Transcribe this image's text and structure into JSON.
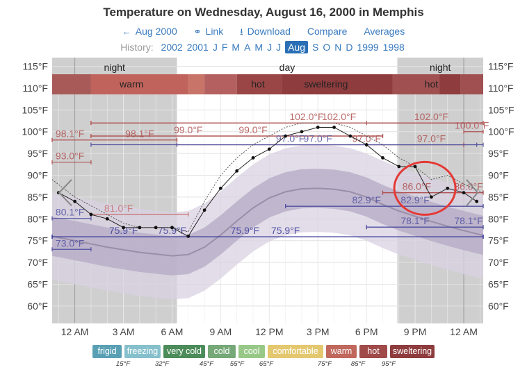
{
  "header": {
    "title": "Temperature on Wednesday, August 16, 2000 in Memphis",
    "nav": [
      {
        "icon": "arrow-left-icon",
        "glyph": "←",
        "label": "Aug 2000"
      },
      {
        "icon": "link-icon",
        "glyph": "⚭",
        "label": "Link"
      },
      {
        "icon": "download-icon",
        "glyph": "⭳",
        "label": "Download"
      },
      {
        "icon": "",
        "glyph": "",
        "label": "Compare"
      },
      {
        "icon": "",
        "glyph": "",
        "label": "Averages"
      }
    ],
    "history_label": "History:",
    "history": [
      "2002",
      "2001",
      "J",
      "F",
      "M",
      "A",
      "M",
      "J",
      "J",
      "Aug",
      "S",
      "O",
      "N",
      "D",
      "1999",
      "1998"
    ],
    "history_selected": "Aug"
  },
  "chart_data": {
    "type": "line",
    "y_unit": "°F",
    "ylim": [
      56,
      117
    ],
    "y_ticks": [
      60,
      65,
      70,
      75,
      80,
      85,
      90,
      95,
      100,
      105,
      110,
      115
    ],
    "y_tick_labels": [
      "60°F",
      "65°F",
      "70°F",
      "75°F",
      "80°F",
      "85°F",
      "90°F",
      "95°F",
      "100°F",
      "105°F",
      "110°F",
      "115°F"
    ],
    "xlim": [
      -1.4,
      25.2
    ],
    "x_ticks": [
      0,
      3,
      6,
      9,
      12,
      15,
      18,
      21,
      24
    ],
    "x_tick_labels": [
      "12 AM",
      "3 AM",
      "6 AM",
      "9 AM",
      "12 PM",
      "3 PM",
      "6 PM",
      "9 PM",
      "12 AM"
    ],
    "periods": [
      {
        "label": "night",
        "start": -1.4,
        "end": 6.3
      },
      {
        "label": "day",
        "start": 6.3,
        "end": 19.9
      },
      {
        "label": "night",
        "start": 19.9,
        "end": 25.2
      }
    ],
    "band_labels": [
      {
        "label": "warm",
        "x": 3.5
      },
      {
        "label": "hot",
        "x": 11.3
      },
      {
        "label": "sweltering",
        "x": 15.5
      },
      {
        "label": "hot",
        "x": 22.0
      }
    ],
    "band_segments": [
      {
        "start": -1.4,
        "end": 1.0,
        "color": "#a85a58"
      },
      {
        "start": 1.0,
        "end": 7.0,
        "color": "#c0635c"
      },
      {
        "start": 7.0,
        "end": 8.0,
        "color": "#c87468"
      },
      {
        "start": 8.0,
        "end": 10.0,
        "color": "#b46060"
      },
      {
        "start": 10.0,
        "end": 12.8,
        "color": "#9a4646"
      },
      {
        "start": 12.8,
        "end": 19.6,
        "color": "#8e3c3e"
      },
      {
        "start": 19.6,
        "end": 22.5,
        "color": "#a05050"
      },
      {
        "start": 22.5,
        "end": 23.8,
        "color": "#8e3c3e"
      },
      {
        "start": 23.8,
        "end": 25.2,
        "color": "#a05050"
      }
    ],
    "observed": {
      "x": [
        -1.0,
        0.0,
        1.0,
        2.0,
        3.0,
        4.0,
        5.0,
        6.0,
        7.0,
        8.0,
        9.0,
        10.0,
        11.0,
        12.0,
        13.0,
        14.0,
        15.0,
        16.0,
        17.0,
        18.0,
        19.0,
        20.0,
        21.0,
        22.0,
        23.0,
        24.0,
        24.8
      ],
      "y": [
        86,
        84,
        81,
        80,
        78,
        78,
        78,
        78,
        76,
        82,
        87,
        91,
        94,
        96,
        99,
        100,
        101,
        101,
        99,
        97,
        94,
        92,
        92,
        85,
        87,
        86,
        84
      ]
    },
    "dotted_line": {
      "x": [
        -1.4,
        0.0,
        1.0,
        2.0,
        3.0,
        4.0,
        5.0,
        6.0,
        7.0,
        8.0,
        9.0,
        10.0,
        11.0,
        12.0,
        13.0,
        14.0,
        15.0,
        16.0,
        17.0,
        18.0,
        19.0,
        20.0,
        21.0,
        22.0,
        23.0,
        24.0,
        25.2
      ],
      "y": [
        89,
        85,
        83,
        81,
        79,
        78,
        78,
        78,
        77,
        84,
        90,
        94,
        97,
        99,
        101,
        102,
        102,
        102,
        101,
        99,
        97,
        94,
        92,
        89,
        90,
        88,
        86
      ]
    },
    "normal_mean": {
      "x": [
        -1.4,
        0,
        2,
        4,
        6,
        7,
        8,
        9,
        10,
        11,
        12,
        13,
        14,
        15,
        16,
        17,
        18,
        19,
        20,
        21,
        22,
        23,
        24,
        25.2
      ],
      "y": [
        76.0,
        75.0,
        73.5,
        72.3,
        71.5,
        71.8,
        73.5,
        76.3,
        79.5,
        82.5,
        84.8,
        86.2,
        86.9,
        87.0,
        86.8,
        86.2,
        85.0,
        83.3,
        81.8,
        80.6,
        79.4,
        78.3,
        77.3,
        76.2
      ]
    },
    "ref_lines": [
      {
        "label": "98.1°F",
        "value": 98.1,
        "start": -1.4,
        "end": 6.3,
        "color": "#b05050",
        "label_x": 4.0
      },
      {
        "label": "98.1°F",
        "value": 98.1,
        "start": -1.4,
        "end": 6.3,
        "color": "#b05050",
        "label_x": -0.3
      },
      {
        "label": "93.0°F",
        "value": 93.0,
        "start": -1.4,
        "end": 1.0,
        "color": "#b05050",
        "label_x": -0.3
      },
      {
        "label": "81.0°F",
        "value": 81.0,
        "start": 1.0,
        "end": 7.0,
        "color": "#c87070",
        "label_x": 2.7
      },
      {
        "label": "80.1°F",
        "value": 80.1,
        "start": -1.4,
        "end": 1.0,
        "color": "#5050a0",
        "label_x": -0.3
      },
      {
        "label": "75.9°F",
        "value": 75.9,
        "start": -1.4,
        "end": 25.2,
        "color": "#3a3a9a",
        "label_x": 3.0
      },
      {
        "label": "75.9°F",
        "value": 75.9,
        "start": -1.4,
        "end": 25.2,
        "color": "#3a3a9a",
        "label_x": 6.0
      },
      {
        "label": "75.9°F",
        "value": 75.9,
        "start": -1.4,
        "end": 25.2,
        "color": "#3a3a9a",
        "label_x": 10.5
      },
      {
        "label": "75.9°F",
        "value": 75.9,
        "start": -1.4,
        "end": 25.2,
        "color": "#3a3a9a",
        "label_x": 13.0
      },
      {
        "label": "73.0°F",
        "value": 73.0,
        "start": -1.4,
        "end": 1.0,
        "color": "#5050a0",
        "label_x": -0.3
      },
      {
        "label": "99.0°F",
        "value": 99.0,
        "start": 1.0,
        "end": 19.0,
        "color": "#b05050",
        "label_x": 7.0
      },
      {
        "label": "99.0°F",
        "value": 99.0,
        "start": 1.0,
        "end": 19.0,
        "color": "#b05050",
        "label_x": 11.0
      },
      {
        "label": "97.0°F",
        "value": 97.0,
        "start": 1.0,
        "end": 24.8,
        "color": "#5050a0",
        "label_x": 13.3
      },
      {
        "label": "102.0°F",
        "value": 102.0,
        "start": 1.0,
        "end": 25.2,
        "color": "#b05050",
        "label_x": 14.3
      },
      {
        "label": "102.0°F",
        "value": 102.0,
        "start": 1.0,
        "end": 25.2,
        "color": "#b05050",
        "label_x": 16.3
      },
      {
        "label": "97.0°F",
        "value": 97.0,
        "start": 6.3,
        "end": 24.0,
        "color": "#b05050",
        "label_x": 18.0
      },
      {
        "label": "102.0°F",
        "value": 102.0,
        "start": 18.0,
        "end": 25.2,
        "color": "#b05050",
        "label_x": 22.0
      },
      {
        "label": "100.0°F",
        "value": 100.0,
        "start": 24.0,
        "end": 25.2,
        "color": "#b05050",
        "label_x": 24.5
      },
      {
        "label": "97.0°F",
        "value": 97.0,
        "start": 18.0,
        "end": 24.0,
        "color": "#b05050",
        "label_x": 22.0
      },
      {
        "label": "97.0°F",
        "value": 97.0,
        "start": 6.3,
        "end": 25.2,
        "color": "#5050a0",
        "label_x": 15.0
      },
      {
        "label": "86.0°F",
        "value": 86.0,
        "start": 19.0,
        "end": 25.2,
        "color": "#b05050",
        "label_x": 21.1
      },
      {
        "label": "86.0°F",
        "value": 86.0,
        "start": 19.0,
        "end": 25.2,
        "color": "#b05050",
        "label_x": 24.3
      },
      {
        "label": "82.9°F",
        "value": 82.9,
        "start": 13.0,
        "end": 25.2,
        "color": "#5050a0",
        "label_x": 18.0
      },
      {
        "label": "82.9°F",
        "value": 82.9,
        "start": 13.0,
        "end": 25.2,
        "color": "#5050a0",
        "label_x": 21.0
      },
      {
        "label": "78.1°F",
        "value": 78.1,
        "start": 18.0,
        "end": 25.2,
        "color": "#5050a0",
        "label_x": 21.0
      },
      {
        "label": "78.1°F",
        "value": 78.1,
        "start": 18.0,
        "end": 25.2,
        "color": "#5050a0",
        "label_x": 24.3
      }
    ],
    "annotation": {
      "type": "circle",
      "x": 21.6,
      "y": 87.0,
      "color": "#e53935"
    }
  },
  "legend": [
    {
      "label": "frigid",
      "color": "#5aa0b4"
    },
    {
      "label": "freezing",
      "color": "#86c0cc"
    },
    {
      "label": "very cold",
      "color": "#4c8c5a"
    },
    {
      "label": "cold",
      "color": "#76a878"
    },
    {
      "label": "cool",
      "color": "#98c888"
    },
    {
      "label": "comfortable",
      "color": "#e4c870"
    },
    {
      "label": "warm",
      "color": "#c0685c"
    },
    {
      "label": "hot",
      "color": "#a04a4a"
    },
    {
      "label": "sweltering",
      "color": "#8e3c3e"
    }
  ],
  "legend_thresholds": [
    "15°F",
    "32°F",
    "45°F",
    "55°F",
    "65°F",
    "75°F",
    "85°F",
    "95°F"
  ]
}
